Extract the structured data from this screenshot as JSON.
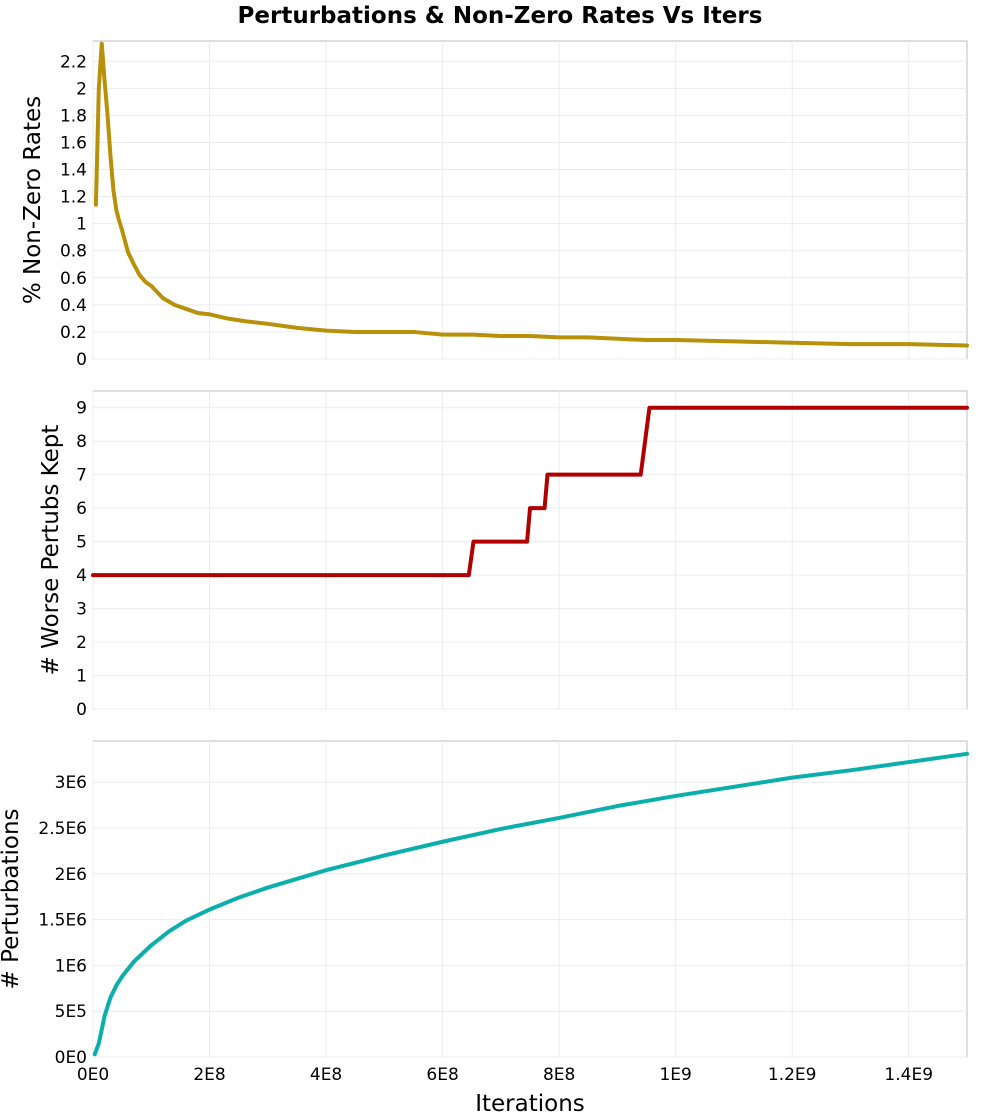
{
  "chart_data": {
    "title": "Perturbations & Non-Zero Rates Vs Iters",
    "type": "line",
    "xlabel": "Iterations",
    "xlim": [
      0,
      1500000000
    ],
    "xticks": [
      0,
      200000000,
      400000000,
      600000000,
      800000000,
      1000000000,
      1200000000,
      1400000000
    ],
    "xtick_labels": [
      "0E0",
      "2E8",
      "4E8",
      "6E8",
      "8E8",
      "1E9",
      "1.2E9",
      "1.4E9"
    ],
    "grid": true,
    "panels": [
      {
        "name": "Non-Zero Rates",
        "ylabel": "% Non-Zero Rates",
        "ylim": [
          0,
          2.35
        ],
        "yticks": [
          0,
          0.2,
          0.4,
          0.6,
          0.8,
          1,
          1.2,
          1.4,
          1.6,
          1.8,
          2,
          2.2
        ],
        "ytick_labels": [
          "0",
          "0.2",
          "0.4",
          "0.6",
          "0.8",
          "1",
          "1.2",
          "1.4",
          "1.6",
          "1.8",
          "2",
          "2.2"
        ],
        "color": "#b8900a",
        "step": false,
        "x": [
          5000000,
          10000000,
          15000000,
          20000000,
          25000000,
          30000000,
          35000000,
          40000000,
          45000000,
          50000000,
          55000000,
          60000000,
          70000000,
          80000000,
          90000000,
          100000000,
          120000000,
          140000000,
          160000000,
          180000000,
          200000000,
          230000000,
          260000000,
          300000000,
          350000000,
          400000000,
          450000000,
          500000000,
          550000000,
          600000000,
          650000000,
          700000000,
          750000000,
          800000000,
          850000000,
          900000000,
          950000000,
          1000000000,
          1100000000,
          1200000000,
          1300000000,
          1400000000,
          1500000000
        ],
        "values": [
          1.14,
          2.0,
          2.33,
          2.05,
          1.8,
          1.5,
          1.25,
          1.1,
          1.02,
          0.95,
          0.87,
          0.79,
          0.7,
          0.62,
          0.57,
          0.54,
          0.45,
          0.4,
          0.37,
          0.34,
          0.33,
          0.3,
          0.28,
          0.26,
          0.23,
          0.21,
          0.2,
          0.2,
          0.2,
          0.18,
          0.18,
          0.17,
          0.17,
          0.16,
          0.16,
          0.15,
          0.14,
          0.14,
          0.13,
          0.12,
          0.11,
          0.11,
          0.1
        ]
      },
      {
        "name": "Worse Pertubs Kept",
        "ylabel": "# Worse Pertubs Kept",
        "ylim": [
          0,
          9.5
        ],
        "yticks": [
          0,
          1,
          2,
          3,
          4,
          5,
          6,
          7,
          8,
          9
        ],
        "ytick_labels": [
          "0",
          "1",
          "2",
          "3",
          "4",
          "5",
          "6",
          "7",
          "8",
          "9"
        ],
        "color": "#b00000",
        "step": true,
        "x": [
          0,
          645000000,
          653000000,
          745000000,
          750000000,
          775000000,
          780000000,
          940000000,
          955000000,
          1500000000
        ],
        "values": [
          4,
          4,
          5,
          5,
          6,
          6,
          7,
          7,
          9,
          9
        ]
      },
      {
        "name": "Perturbations",
        "ylabel": "# Perturbations",
        "ylim": [
          0,
          3450000
        ],
        "yticks": [
          0,
          500000,
          1000000,
          1500000,
          2000000,
          2500000,
          3000000
        ],
        "ytick_labels": [
          "0E0",
          "5E5",
          "1E6",
          "1.5E6",
          "2E6",
          "2.5E6",
          "3E6"
        ],
        "color": "#0aaeaa",
        "step": false,
        "x": [
          3000000,
          10000000,
          20000000,
          30000000,
          40000000,
          50000000,
          70000000,
          100000000,
          130000000,
          160000000,
          200000000,
          250000000,
          300000000,
          400000000,
          500000000,
          600000000,
          700000000,
          800000000,
          900000000,
          1000000000,
          1100000000,
          1200000000,
          1300000000,
          1400000000,
          1500000000
        ],
        "values": [
          30000,
          150000,
          450000,
          650000,
          780000,
          880000,
          1040000,
          1220000,
          1370000,
          1490000,
          1610000,
          1740000,
          1850000,
          2040000,
          2200000,
          2350000,
          2490000,
          2610000,
          2740000,
          2850000,
          2950000,
          3050000,
          3130000,
          3220000,
          3310000
        ]
      }
    ]
  }
}
